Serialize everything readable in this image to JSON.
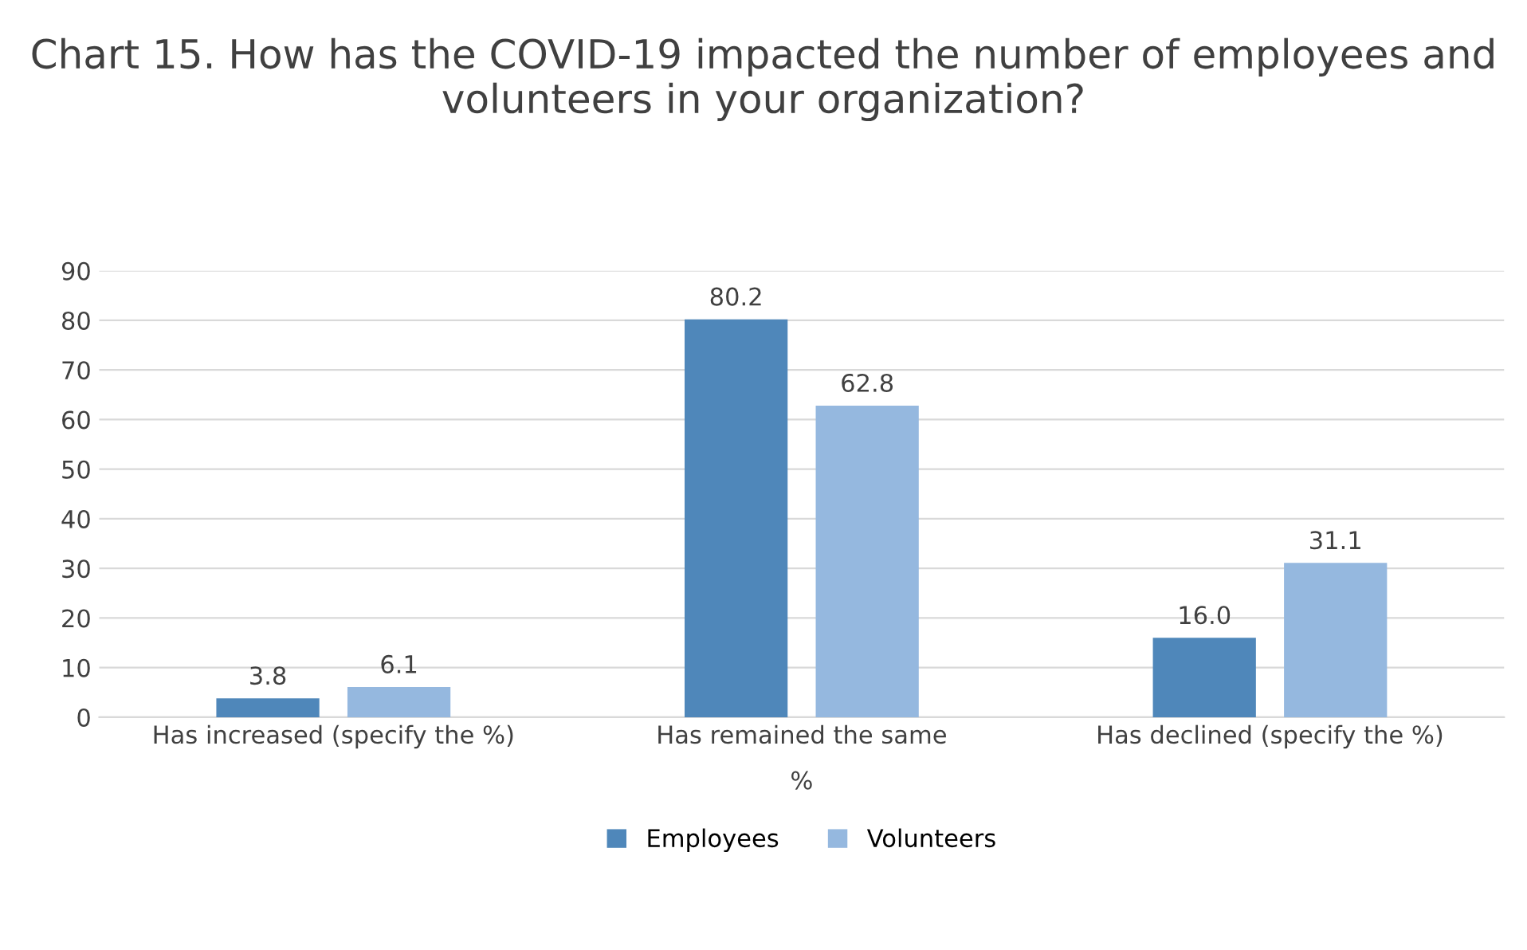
{
  "chart_data": {
    "type": "bar",
    "title": "Chart 15. How has the COVID-19 impacted the number of employees and volunteers in your organization?",
    "categories": [
      "Has increased (specify the %)",
      "Has remained the same",
      "Has declined (specify the %)"
    ],
    "xlabel": "%",
    "series": [
      {
        "name": "Employees",
        "color": "#4f87ba",
        "values": [
          3.8,
          80.2,
          16.0
        ],
        "value_labels": [
          "3.8",
          "80.2",
          "16.0"
        ]
      },
      {
        "name": "Volunteers",
        "color": "#95b8df",
        "values": [
          6.1,
          62.8,
          31.1
        ],
        "value_labels": [
          "6.1",
          "62.8",
          "31.1"
        ]
      }
    ],
    "ylim": [
      0,
      90
    ],
    "yticks": [
      0,
      10,
      20,
      30,
      40,
      50,
      60,
      70,
      80,
      90
    ],
    "grid": "y",
    "legend": "bottom"
  }
}
